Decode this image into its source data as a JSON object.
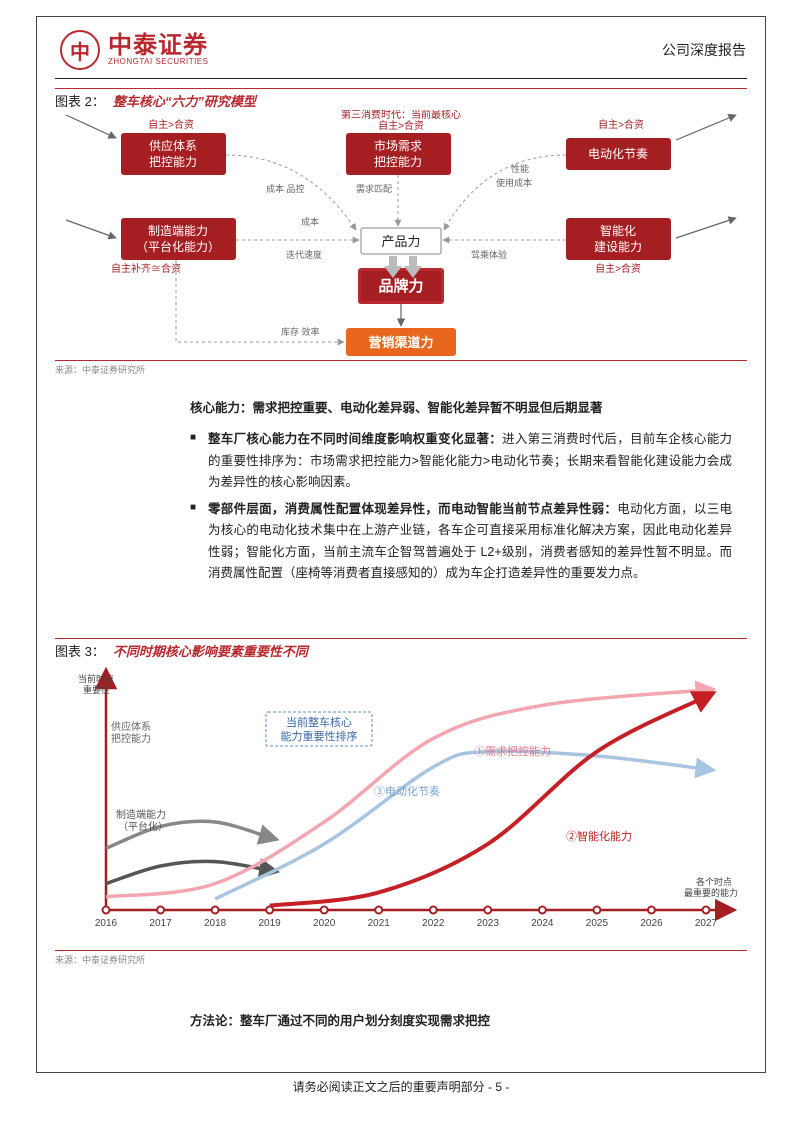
{
  "header": {
    "logo_cn": "中泰证券",
    "logo_en": "ZHONGTAI SECURITIES",
    "logo_glyph": "中",
    "report_type": "公司深度报告"
  },
  "fig2": {
    "number": "图表 2：",
    "title": "整车核心“六力”研究模型",
    "source": "来源：中泰证券研究所",
    "colors": {
      "box_red": "#a51e22",
      "box_orange": "#e8671c",
      "brand_red": "#b8292f",
      "dash_grey": "#999999",
      "text_grey": "#666666"
    },
    "nodes": {
      "supply": {
        "l1": "供应体系",
        "l2": "把控能力",
        "note": "自主>合资"
      },
      "demand": {
        "l1": "市场需求",
        "l2": "把控能力",
        "note_top": "第三消费时代：当前最核心",
        "note": "自主>合资"
      },
      "ev": {
        "l1": "电动化节奏",
        "note": "自主>合资"
      },
      "mfg": {
        "l1": "制造端能力",
        "l2": "（平台化能力）",
        "note": "自主补齐≅合资"
      },
      "ai": {
        "l1": "智能化",
        "l2": "建设能力",
        "note": "自主>合资"
      },
      "product": "产品力",
      "brand": "品牌力",
      "channel": "营销渠道力"
    },
    "edge_labels": {
      "cost_quality": "成本 品控",
      "demand_match": "需求匹配",
      "perf": "性能",
      "use_cost": "使用成本",
      "cost": "成本",
      "iter_speed": "迭代速度",
      "drive_exp": "驾乘体验",
      "stock_eff": "库存 效率"
    }
  },
  "body1": {
    "heading": "核心能力：需求把控重要、电动化差异弱、智能化差异暂不明显但后期显著",
    "b1_bold": "整车厂核心能力在不同时间维度影响权重变化显著：",
    "b1_rest": "进入第三消费时代后，目前车企核心能力的重要性排序为：市场需求把控能力>智能化能力>电动化节奏；长期来看智能化建设能力会成为差异性的核心影响因素。",
    "b2_bold": "零部件层面，消费属性配置体现差异性，而电动智能当前节点差异性弱：",
    "b2_rest": "电动化方面，以三电为核心的电动化技术集中在上游产业链，各车企可直接采用标准化解决方案，因此电动化差异性弱；智能化方面，当前主流车企智驾普遍处于 L2+级别，消费者感知的差异性暂不明显。而消费属性配置（座椅等消费者直接感知的）成为车企打造差异性的重要发力点。"
  },
  "fig3": {
    "number": "图表 3：",
    "title": "不同时期核心影响要素重要性不同",
    "source": "来源：中泰证券研究所",
    "colors": {
      "axis": "#a51e22",
      "pink": "#f4a6b0",
      "blue": "#a7c4e2",
      "red": "#c42026",
      "grey_mid": "#888888",
      "grey_dark": "#555555",
      "dashbox": "#5a8bc9"
    },
    "ylabel": "当前时点\n重要性",
    "xlabel_right": "各个时点\n最重要的能力",
    "xticks": [
      "2016",
      "2017",
      "2018",
      "2019",
      "2020",
      "2021",
      "2022",
      "2023",
      "2024",
      "2025",
      "2026",
      "2027"
    ],
    "annotations": {
      "dashbox": "当前整车核心\n能力重要性排序",
      "pink": "①需求把控能力",
      "blue": "③电动化节奏",
      "red": "②智能化能力",
      "grey1": "供应体系\n把控能力",
      "grey2": "制造端能力\n（平台化）"
    },
    "series": {
      "pink": [
        {
          "x": 2016,
          "y": 6
        },
        {
          "x": 2018,
          "y": 12
        },
        {
          "x": 2020,
          "y": 40
        },
        {
          "x": 2022,
          "y": 78
        },
        {
          "x": 2024,
          "y": 93
        },
        {
          "x": 2027,
          "y": 100
        }
      ],
      "blue": [
        {
          "x": 2018,
          "y": 5
        },
        {
          "x": 2020,
          "y": 30
        },
        {
          "x": 2022,
          "y": 65
        },
        {
          "x": 2023,
          "y": 72
        },
        {
          "x": 2025,
          "y": 70
        },
        {
          "x": 2027,
          "y": 64
        }
      ],
      "red": [
        {
          "x": 2019,
          "y": 2
        },
        {
          "x": 2021,
          "y": 8
        },
        {
          "x": 2023,
          "y": 30
        },
        {
          "x": 2025,
          "y": 72
        },
        {
          "x": 2027,
          "y": 97
        }
      ],
      "grey1": [
        {
          "x": 2016,
          "y": 28
        },
        {
          "x": 2017,
          "y": 38
        },
        {
          "x": 2018,
          "y": 40
        },
        {
          "x": 2019,
          "y": 33
        }
      ],
      "grey2": [
        {
          "x": 2016,
          "y": 12
        },
        {
          "x": 2017,
          "y": 20
        },
        {
          "x": 2018,
          "y": 22
        },
        {
          "x": 2019,
          "y": 18
        }
      ]
    }
  },
  "body2": {
    "heading": "方法论：整车厂通过不同的用户划分刻度实现需求把控"
  },
  "footer": {
    "text": "请务必阅读正文之后的重要声明部分 - 5 -"
  }
}
